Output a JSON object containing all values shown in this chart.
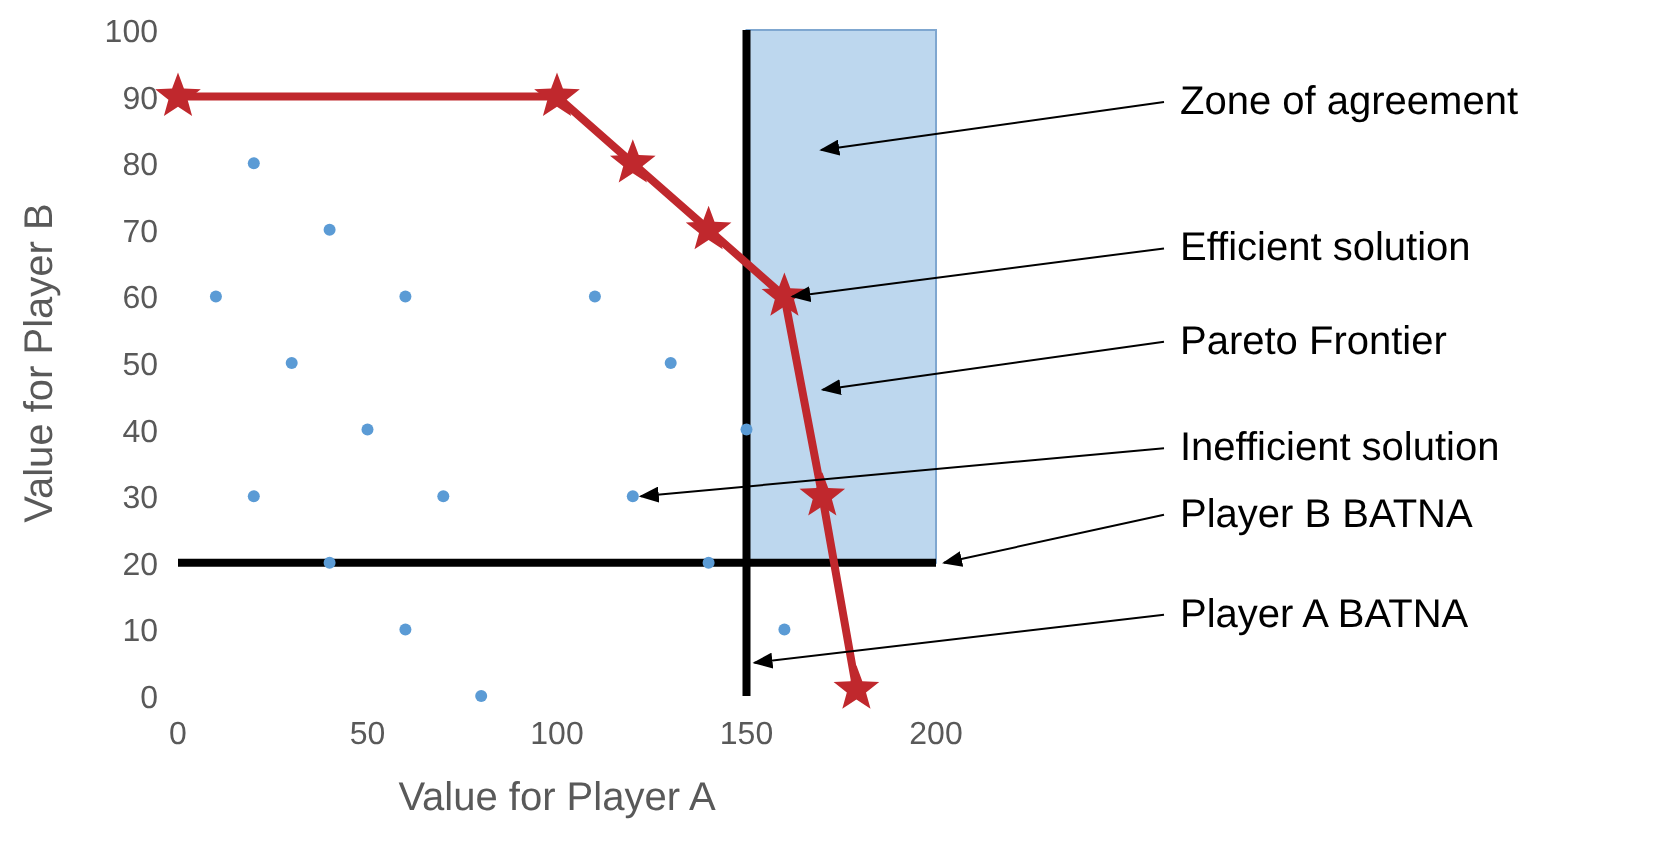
{
  "chart_data": {
    "type": "scatter",
    "xlabel": "Value for Player A",
    "ylabel": "Value for Player B",
    "xlim": [
      0,
      200
    ],
    "ylim": [
      0,
      100
    ],
    "xticks": [
      0,
      50,
      100,
      150,
      200
    ],
    "yticks": [
      0,
      10,
      20,
      30,
      40,
      50,
      60,
      70,
      80,
      90,
      100
    ],
    "grid": false,
    "series": [
      {
        "color": "#5b9bd5",
        "marker": "circle",
        "x": [
          20,
          40,
          10,
          60,
          110,
          30,
          130,
          50,
          150,
          20,
          70,
          120,
          40,
          140,
          60,
          160,
          80
        ],
        "values": [
          80,
          70,
          60,
          60,
          60,
          50,
          50,
          40,
          40,
          30,
          30,
          30,
          20,
          20,
          10,
          10,
          0
        ]
      },
      {
        "type": "line",
        "color": "#c0282d",
        "marker": "star",
        "line_style": "solid",
        "x": [
          0,
          100,
          120,
          140,
          160,
          170,
          179
        ],
        "values": [
          90,
          90,
          80,
          70,
          60,
          30,
          1
        ]
      }
    ],
    "ref_lines": [
      {
        "axis": "x",
        "value": 150,
        "color": "#000000"
      },
      {
        "axis": "y",
        "value": 20,
        "color": "#000000"
      }
    ],
    "bands": [
      {
        "axis": "x",
        "from": 150,
        "to": 200,
        "color": "#bdd7ee"
      }
    ],
    "annotations": [
      "Zone of agreement",
      {
        "text": "Efficient solution",
        "x": 160,
        "y": 60
      },
      {
        "text": "Pareto Frontier",
        "x": 168,
        "y": 46
      },
      {
        "text": "Inefficient solution",
        "x": 120,
        "y": 30
      },
      {
        "text": "Player B BATNA",
        "x": 200,
        "y": 20
      },
      {
        "text": "Player A BATNA",
        "x": 150,
        "y": 5
      }
    ]
  }
}
